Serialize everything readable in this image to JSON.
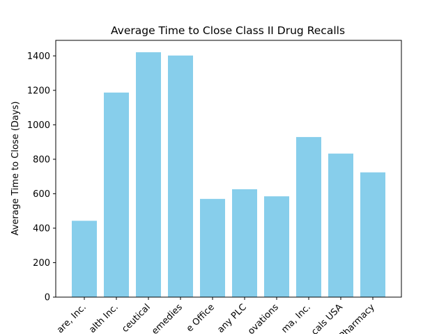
{
  "chart_data": {
    "type": "bar",
    "title": "Average Time to Close Class II Drug Recalls",
    "xlabel": "",
    "ylabel": "Average Time to Close (Days)",
    "categories": [
      "are, Inc.",
      "alth Inc.",
      "ceutical",
      "emedies",
      "e Office",
      "any PLC",
      "ovations",
      "ma, Inc.",
      "cals USA",
      "Pharmacy"
    ],
    "values": [
      443,
      1187,
      1421,
      1402,
      570,
      626,
      585,
      929,
      833,
      724
    ],
    "ylim": [
      0,
      1490
    ],
    "yticks": [
      0,
      200,
      400,
      600,
      800,
      1000,
      1200,
      1400
    ],
    "grid": false,
    "colors": {
      "bar": "#87ceeb"
    }
  }
}
